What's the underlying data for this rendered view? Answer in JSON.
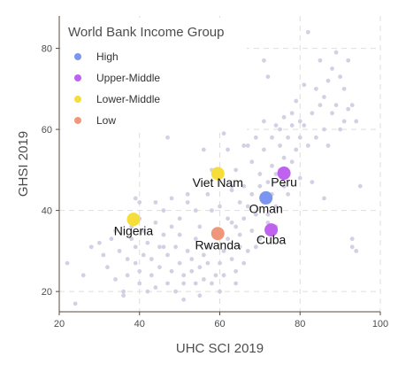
{
  "chart_data": {
    "type": "scatter",
    "xlabel": "UHC SCI 2019",
    "ylabel": "GHSI 2019",
    "xlim": [
      20,
      100
    ],
    "ylim": [
      15,
      88
    ],
    "xticks": [
      20,
      40,
      60,
      80,
      100
    ],
    "yticks": [
      20,
      40,
      60,
      80
    ],
    "grid": true,
    "legend": {
      "title": "World Bank Income Group",
      "placement": "top-left",
      "items": [
        {
          "label": "High",
          "color": "#7b96f0"
        },
        {
          "label": "Upper-Middle",
          "color": "#c062f0"
        },
        {
          "label": "Lower-Middle",
          "color": "#f5de3a"
        },
        {
          "label": "Low",
          "color": "#f0967a"
        }
      ]
    },
    "background_points_color": "#d4d0e4",
    "background_points": [
      [
        24,
        17
      ],
      [
        22,
        27
      ],
      [
        26,
        24
      ],
      [
        28,
        31
      ],
      [
        30,
        32
      ],
      [
        31,
        29
      ],
      [
        32,
        26
      ],
      [
        33,
        33
      ],
      [
        34,
        35
      ],
      [
        34,
        23
      ],
      [
        35,
        30
      ],
      [
        36,
        20
      ],
      [
        36,
        19
      ],
      [
        37,
        24
      ],
      [
        37,
        28
      ],
      [
        38,
        36
      ],
      [
        38,
        33
      ],
      [
        39,
        27
      ],
      [
        39,
        31
      ],
      [
        40,
        22
      ],
      [
        40,
        25
      ],
      [
        40,
        38
      ],
      [
        40,
        42
      ],
      [
        41,
        29
      ],
      [
        41,
        35
      ],
      [
        42,
        20
      ],
      [
        42,
        32
      ],
      [
        43,
        24
      ],
      [
        43,
        28
      ],
      [
        44,
        37
      ],
      [
        44,
        21
      ],
      [
        45,
        31
      ],
      [
        45,
        26
      ],
      [
        46,
        34
      ],
      [
        46,
        40
      ],
      [
        47,
        22
      ],
      [
        47,
        29
      ],
      [
        48,
        36
      ],
      [
        48,
        43
      ],
      [
        48,
        25
      ],
      [
        49,
        20
      ],
      [
        49,
        31
      ],
      [
        50,
        27
      ],
      [
        50,
        38
      ],
      [
        50,
        34
      ],
      [
        51,
        24
      ],
      [
        51,
        22
      ],
      [
        52,
        30
      ],
      [
        52,
        42
      ],
      [
        53,
        28
      ],
      [
        53,
        25
      ],
      [
        54,
        40
      ],
      [
        54,
        33
      ],
      [
        54,
        22
      ],
      [
        55,
        26
      ],
      [
        55,
        36
      ],
      [
        56,
        29
      ],
      [
        56,
        23
      ],
      [
        57,
        44
      ],
      [
        57,
        27
      ],
      [
        57,
        31
      ],
      [
        58,
        40
      ],
      [
        58,
        22
      ],
      [
        59,
        24
      ],
      [
        59,
        35
      ],
      [
        60,
        27
      ],
      [
        60,
        41
      ],
      [
        61,
        30
      ],
      [
        61,
        24
      ],
      [
        62,
        33
      ],
      [
        62,
        38
      ],
      [
        62,
        55
      ],
      [
        63,
        28
      ],
      [
        63,
        45
      ],
      [
        63,
        46
      ],
      [
        64,
        36
      ],
      [
        64,
        25
      ],
      [
        64,
        50
      ],
      [
        65,
        31
      ],
      [
        65,
        42
      ],
      [
        65,
        34
      ],
      [
        66,
        38
      ],
      [
        66,
        27
      ],
      [
        66,
        46
      ],
      [
        67,
        30
      ],
      [
        67,
        41
      ],
      [
        67,
        56
      ],
      [
        68,
        44
      ],
      [
        68,
        35
      ],
      [
        68,
        52
      ],
      [
        69,
        39
      ],
      [
        69,
        31
      ],
      [
        69,
        58
      ],
      [
        70,
        46
      ],
      [
        70,
        49
      ],
      [
        70,
        33
      ],
      [
        71,
        55
      ],
      [
        71,
        42
      ],
      [
        71,
        62
      ],
      [
        72,
        47
      ],
      [
        72,
        39
      ],
      [
        72,
        37
      ],
      [
        72,
        73
      ],
      [
        73,
        51
      ],
      [
        73,
        44
      ],
      [
        73,
        58
      ],
      [
        74,
        41
      ],
      [
        74,
        49
      ],
      [
        74,
        61
      ],
      [
        75,
        50
      ],
      [
        75,
        56
      ],
      [
        75,
        60
      ],
      [
        76,
        46
      ],
      [
        76,
        53
      ],
      [
        76,
        63
      ],
      [
        77,
        58
      ],
      [
        77,
        44
      ],
      [
        77,
        49
      ],
      [
        78,
        52
      ],
      [
        78,
        61
      ],
      [
        78,
        64
      ],
      [
        79,
        55
      ],
      [
        79,
        67
      ],
      [
        80,
        58
      ],
      [
        80,
        62
      ],
      [
        80,
        48
      ],
      [
        81,
        71
      ],
      [
        81,
        61
      ],
      [
        82,
        84
      ],
      [
        82,
        56
      ],
      [
        83,
        64
      ],
      [
        83,
        47
      ],
      [
        84,
        70
      ],
      [
        84,
        58
      ],
      [
        85,
        66
      ],
      [
        85,
        77
      ],
      [
        86,
        60
      ],
      [
        86,
        68
      ],
      [
        87,
        72
      ],
      [
        87,
        56
      ],
      [
        88,
        64
      ],
      [
        88,
        75
      ],
      [
        89,
        79
      ],
      [
        89,
        66
      ],
      [
        90,
        73
      ],
      [
        90,
        60
      ],
      [
        91,
        70
      ],
      [
        91,
        62
      ],
      [
        92,
        77
      ],
      [
        92,
        65
      ],
      [
        93,
        66
      ],
      [
        94,
        62
      ],
      [
        95,
        46
      ],
      [
        39,
        43
      ],
      [
        47,
        58
      ],
      [
        58,
        50
      ],
      [
        61,
        59
      ],
      [
        63,
        37
      ],
      [
        66,
        56
      ],
      [
        71,
        77
      ],
      [
        94,
        30
      ],
      [
        93,
        33
      ],
      [
        93,
        31
      ],
      [
        74,
        36
      ],
      [
        86,
        43
      ],
      [
        56,
        55
      ],
      [
        52,
        44
      ],
      [
        44,
        42
      ],
      [
        46,
        31
      ],
      [
        60,
        20
      ],
      [
        64,
        22
      ],
      [
        55,
        19
      ],
      [
        51,
        18
      ]
    ],
    "highlighted": [
      {
        "country": "Nigeria",
        "x": 38.5,
        "y": 37.8,
        "group": "Lower-Middle",
        "color": "#f5de3a"
      },
      {
        "country": "Viet Nam",
        "x": 59.5,
        "y": 49.1,
        "group": "Lower-Middle",
        "color": "#f5de3a"
      },
      {
        "country": "Peru",
        "x": 76.0,
        "y": 49.2,
        "group": "Upper-Middle",
        "color": "#c062f0"
      },
      {
        "country": "Oman",
        "x": 71.5,
        "y": 43.1,
        "group": "High",
        "color": "#7b96f0"
      },
      {
        "country": "Cuba",
        "x": 72.8,
        "y": 35.2,
        "group": "Upper-Middle",
        "color": "#c062f0"
      },
      {
        "country": "Rwanda",
        "x": 59.5,
        "y": 34.3,
        "group": "Low",
        "color": "#f0967a"
      }
    ]
  }
}
